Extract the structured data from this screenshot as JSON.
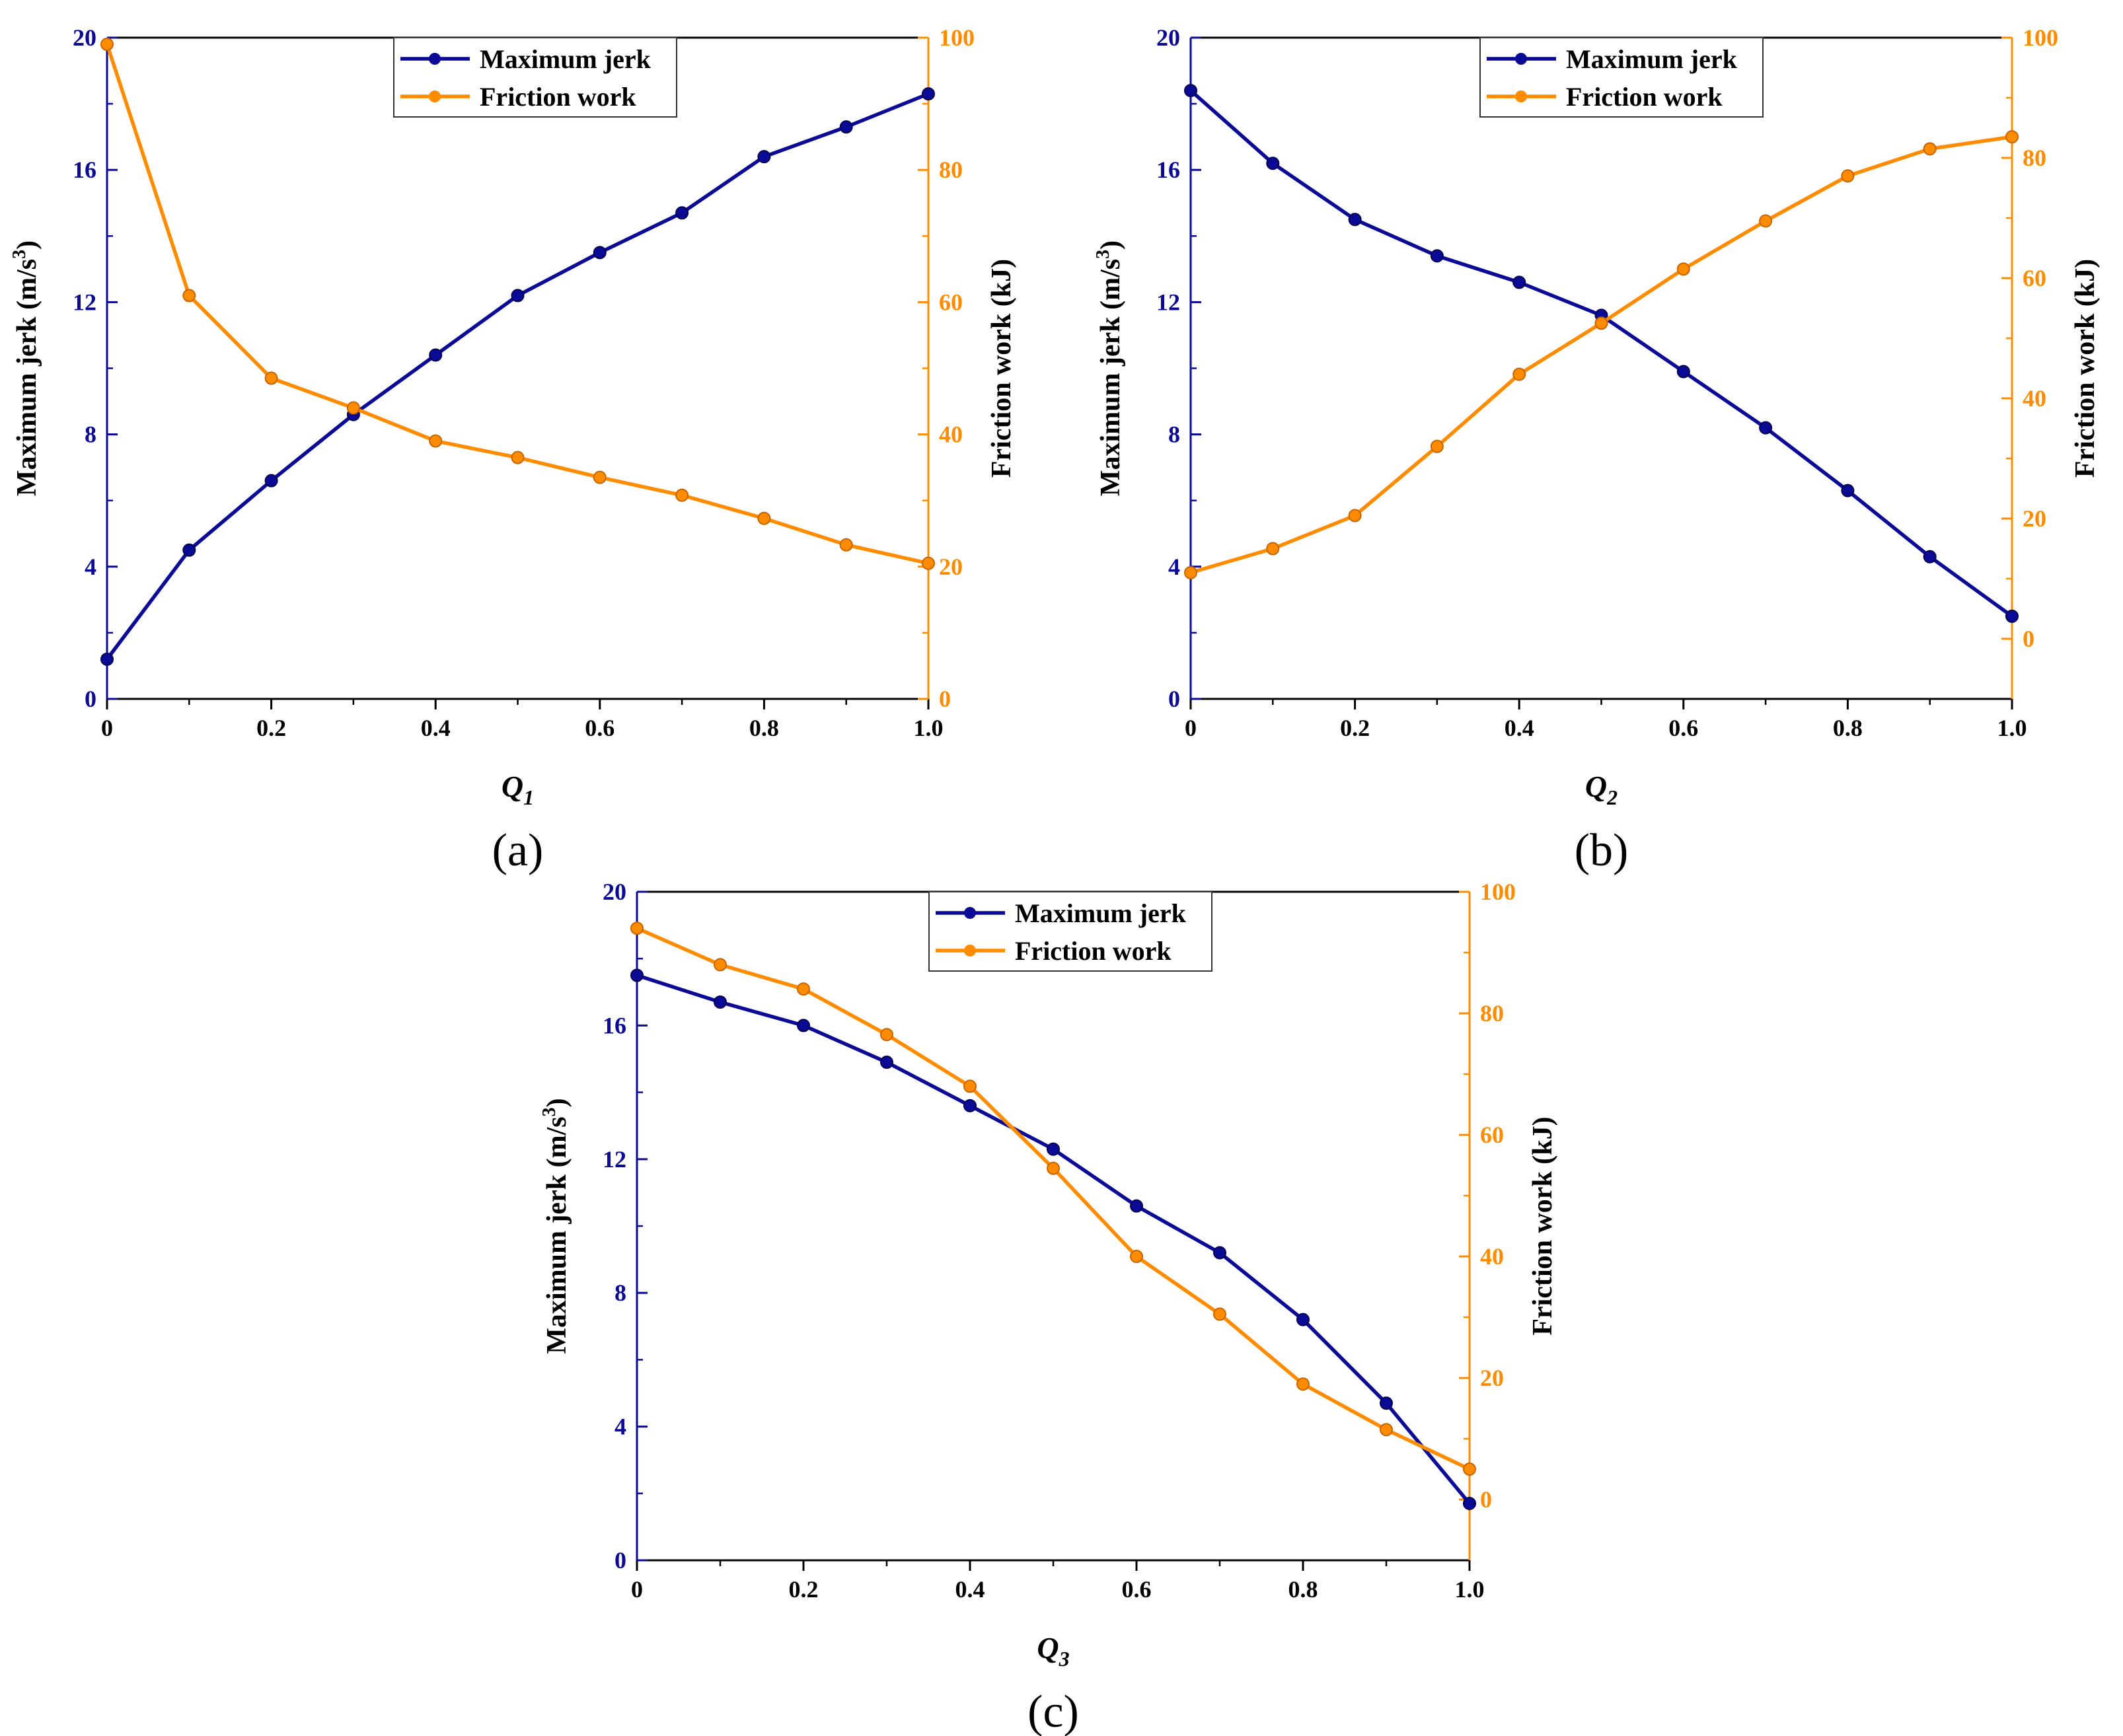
{
  "colors": {
    "jerk": "#0a0a96",
    "friction": "#ff8c00",
    "axis": "#000000"
  },
  "chart_data": [
    {
      "type": "line",
      "panel_label": "(a)",
      "xlabel": "Q",
      "xlabel_sub": "1",
      "ylabel_left": "Maximum jerk (m/s",
      "ylabel_left_sup": "3",
      "ylabel_left_close": ")",
      "ylabel_right": "Friction work (kJ)",
      "xlim": [
        0,
        1.0
      ],
      "ylim_left": [
        0,
        20
      ],
      "ylim_right": [
        0,
        100
      ],
      "x_ticks": [
        "0",
        "0.2",
        "0.4",
        "0.6",
        "0.8",
        "1.0"
      ],
      "y_ticks_left": [
        "0",
        "4",
        "8",
        "12",
        "16",
        "20"
      ],
      "y_ticks_right": [
        "0",
        "20",
        "40",
        "60",
        "80",
        "100"
      ],
      "legend": [
        "Maximum jerk",
        "Friction work"
      ],
      "x": [
        0,
        0.1,
        0.2,
        0.3,
        0.4,
        0.5,
        0.6,
        0.7,
        0.8,
        0.9,
        1.0
      ],
      "series": [
        {
          "name": "Maximum jerk",
          "axis": "left",
          "values": [
            1.2,
            4.5,
            6.6,
            8.6,
            10.4,
            12.2,
            13.5,
            14.7,
            16.4,
            17.3,
            18.3
          ]
        },
        {
          "name": "Friction work",
          "axis": "right",
          "values": [
            99,
            61,
            48.5,
            44,
            39,
            36.5,
            33.5,
            30.8,
            27.3,
            23.3,
            20.5
          ]
        }
      ]
    },
    {
      "type": "line",
      "panel_label": "(b)",
      "xlabel": "Q",
      "xlabel_sub": "2",
      "ylabel_left": "Maximum jerk (m/s",
      "ylabel_left_sup": "3",
      "ylabel_left_close": ")",
      "ylabel_right": "Friction work (kJ)",
      "xlim": [
        0,
        1.0
      ],
      "ylim_left": [
        0,
        20
      ],
      "ylim_right": [
        -10,
        100
      ],
      "x_ticks": [
        "0",
        "0.2",
        "0.4",
        "0.6",
        "0.8",
        "1.0"
      ],
      "y_ticks_left": [
        "0",
        "4",
        "8",
        "12",
        "16",
        "20"
      ],
      "y_ticks_right": [
        "0",
        "20",
        "40",
        "60",
        "80",
        "100"
      ],
      "legend": [
        "Maximum jerk",
        "Friction work"
      ],
      "x": [
        0,
        0.1,
        0.2,
        0.3,
        0.4,
        0.5,
        0.6,
        0.7,
        0.8,
        0.9,
        1.0
      ],
      "series": [
        {
          "name": "Maximum jerk",
          "axis": "left",
          "values": [
            18.4,
            16.2,
            14.5,
            13.4,
            12.6,
            11.6,
            9.9,
            8.2,
            6.3,
            4.3,
            2.5
          ]
        },
        {
          "name": "Friction work",
          "axis": "right",
          "values": [
            11,
            15,
            20.5,
            32,
            44,
            52.5,
            61.5,
            69.5,
            77,
            81.5,
            83.5
          ]
        }
      ]
    },
    {
      "type": "line",
      "panel_label": "(c)",
      "xlabel": "Q",
      "xlabel_sub": "3",
      "ylabel_left": "Maximum jerk (m/s",
      "ylabel_left_sup": "3",
      "ylabel_left_close": ")",
      "ylabel_right": "Friction work (kJ)",
      "xlim": [
        0,
        1.0
      ],
      "ylim_left": [
        0,
        20
      ],
      "ylim_right": [
        -10,
        100
      ],
      "x_ticks": [
        "0",
        "0.2",
        "0.4",
        "0.6",
        "0.8",
        "1.0"
      ],
      "y_ticks_left": [
        "0",
        "4",
        "8",
        "12",
        "16",
        "20"
      ],
      "y_ticks_right": [
        "0",
        "20",
        "40",
        "60",
        "80",
        "100"
      ],
      "legend": [
        "Maximum jerk",
        "Friction work"
      ],
      "x": [
        0,
        0.1,
        0.2,
        0.3,
        0.4,
        0.5,
        0.6,
        0.7,
        0.8,
        0.9,
        1.0
      ],
      "series": [
        {
          "name": "Maximum jerk",
          "axis": "left",
          "values": [
            17.5,
            16.7,
            16.0,
            14.9,
            13.6,
            12.3,
            10.6,
            9.2,
            7.2,
            4.7,
            1.7
          ]
        },
        {
          "name": "Friction work",
          "axis": "right",
          "values": [
            94,
            88,
            84,
            76.5,
            68,
            54.5,
            40,
            30.5,
            19,
            11.5,
            5
          ]
        }
      ]
    }
  ]
}
